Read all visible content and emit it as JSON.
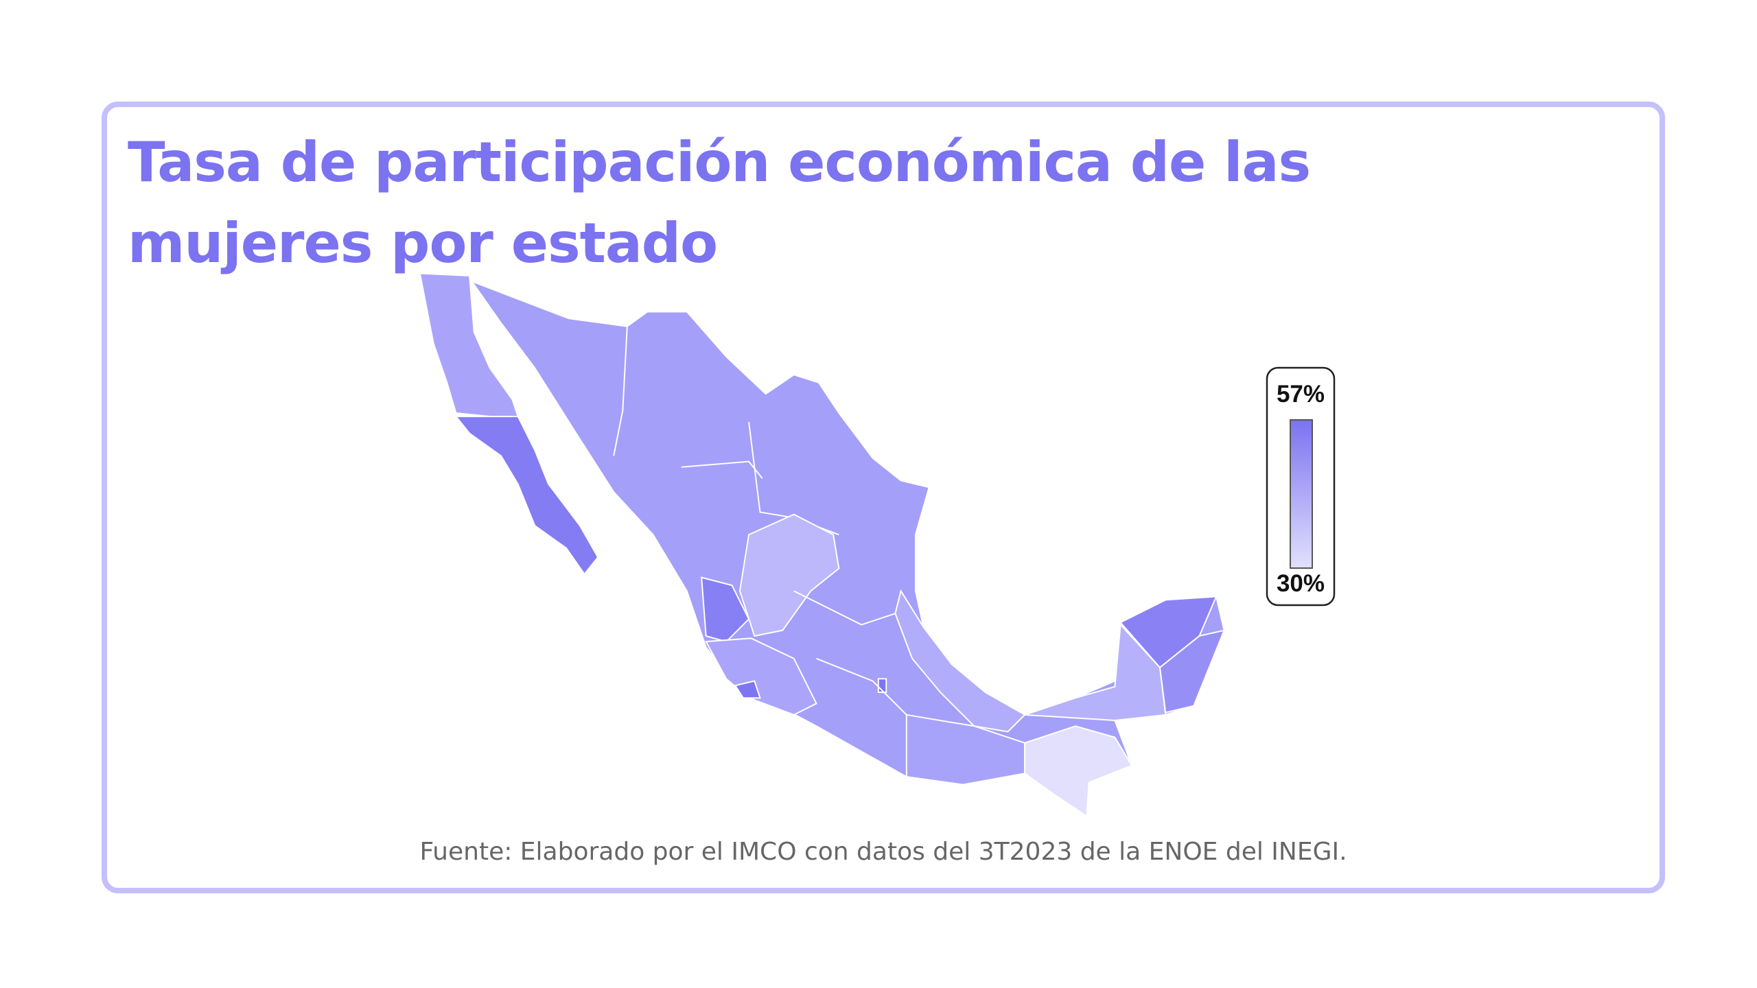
{
  "card": {
    "title": "Tasa de participación económica de las mujeres por estado",
    "legend": {
      "max_label": "57%",
      "min_label": "30%"
    },
    "source": "Fuente: Elaborado por el IMCO con datos del 3T2023 de la ENOE del INEGI."
  }
}
